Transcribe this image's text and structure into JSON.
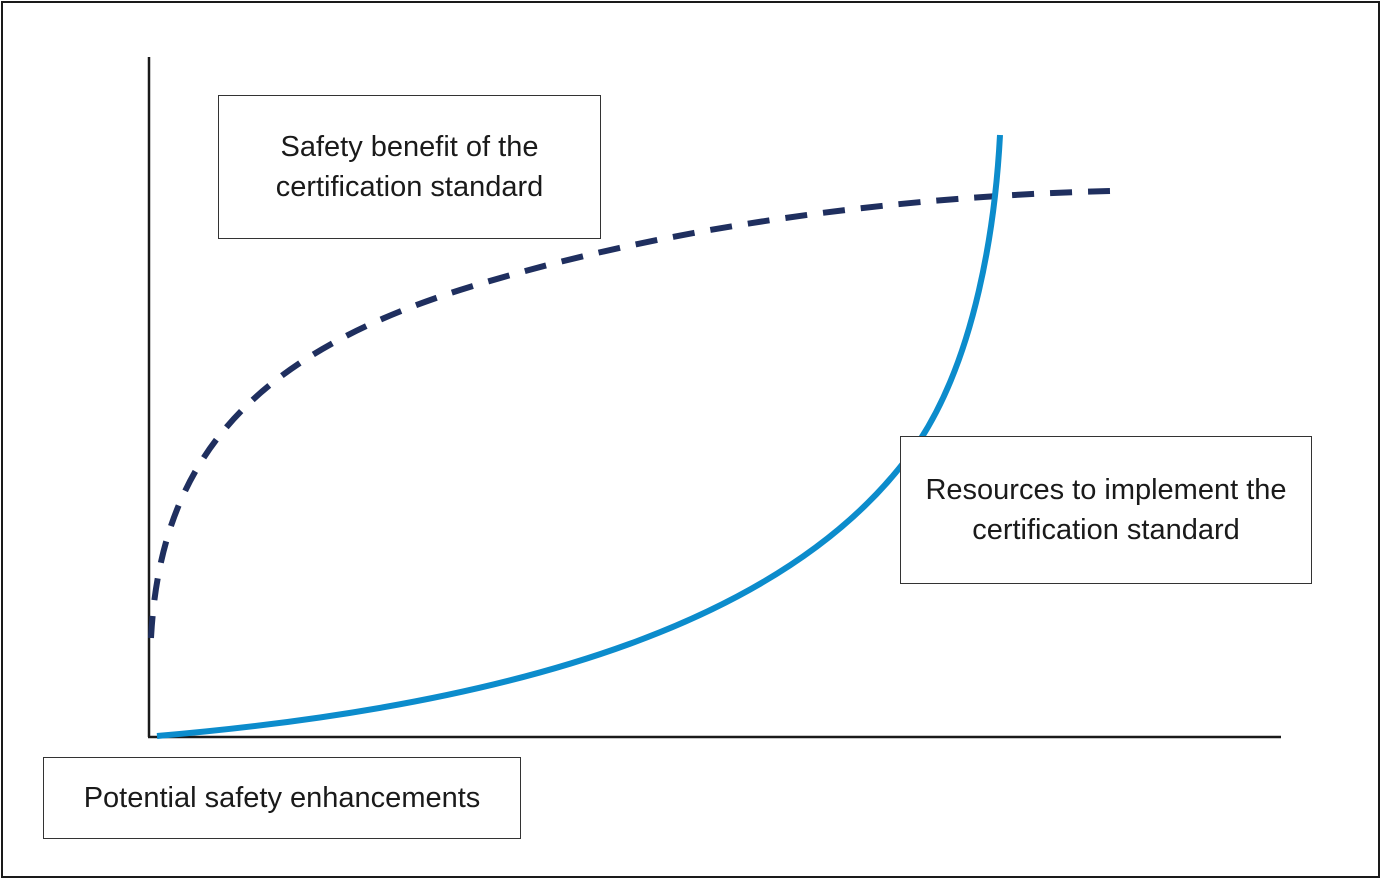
{
  "chart_data": {
    "type": "line",
    "xlabel": "Potential safety enhancements",
    "ylabel": "",
    "series": [
      {
        "name": "Safety benefit of the certification standard",
        "style": "dashed",
        "color": "#1f2f5f",
        "shape": "concave, rising quickly then flattening"
      },
      {
        "name": "Resources to implement the certification standard",
        "style": "solid",
        "color": "#0c8ccc",
        "shape": "convex, rising slowly then steeply"
      }
    ],
    "grid": false,
    "axis_ticks": false
  },
  "labels": {
    "benefit": "Safety benefit of the certification standard",
    "resources": "Resources to implement the certification standard",
    "xaxis": "Potential safety enhancements"
  },
  "colors": {
    "benefit_line": "#1f2f5f",
    "resources_line": "#0c8ccc",
    "axes": "#1a1a1a"
  }
}
